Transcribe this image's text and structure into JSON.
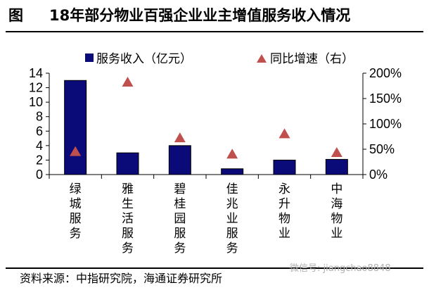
{
  "figure": {
    "label": "图",
    "title": "18年部分物业百强企业业主增值服务收入情况",
    "source": "资料来源：中指研究院，海通证券研究所",
    "watermark": "微信号: jiangchao8848"
  },
  "colors": {
    "bar": "#0a0a78",
    "marker": "#c0504d"
  },
  "chart_data": {
    "type": "bar",
    "categories": [
      "绿城服务",
      "雅生活服务",
      "碧桂园服务",
      "佳兆业服务",
      "永升物业",
      "中海物业"
    ],
    "series": [
      {
        "name": "服务收入（亿元）",
        "type": "bar",
        "axis": "left",
        "values": [
          13.0,
          3.0,
          4.0,
          0.8,
          2.0,
          2.1
        ]
      },
      {
        "name": "同比增速（右）",
        "type": "scatter",
        "axis": "right",
        "marker": "triangle",
        "values": [
          45,
          182,
          72,
          40,
          80,
          43
        ]
      }
    ],
    "ylim": [
      0,
      14
    ],
    "y_ticks": [
      "0",
      "2",
      "4",
      "6",
      "8",
      "10",
      "12",
      "14"
    ],
    "y2lim": [
      0,
      200
    ],
    "y2_ticks": [
      "0%",
      "50%",
      "100%",
      "150%",
      "200%"
    ],
    "legend_position": "top",
    "grid": false
  }
}
